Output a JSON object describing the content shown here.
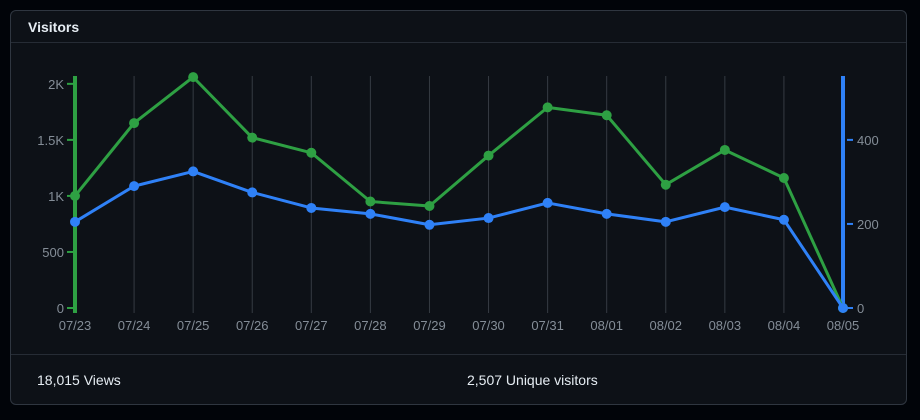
{
  "card": {
    "title": "Visitors"
  },
  "chart_data": {
    "type": "line",
    "x": [
      "07/23",
      "07/24",
      "07/25",
      "07/26",
      "07/27",
      "07/28",
      "07/29",
      "07/30",
      "07/31",
      "08/01",
      "08/02",
      "08/03",
      "08/04",
      "08/05"
    ],
    "series": [
      {
        "name": "Views",
        "axis": "left",
        "color": "#2ea043",
        "values": [
          1000,
          1650,
          2060,
          1520,
          1385,
          950,
          910,
          1360,
          1790,
          1720,
          1100,
          1410,
          1160,
          0
        ]
      },
      {
        "name": "Unique visitors",
        "axis": "right",
        "color": "#2f81f7",
        "values": [
          205,
          290,
          325,
          275,
          238,
          224,
          198,
          214,
          250,
          224,
          205,
          240,
          210,
          0
        ]
      }
    ],
    "left_axis": {
      "color": "#2ea043",
      "range": [
        0,
        2070
      ],
      "ticks": [
        {
          "value": 0,
          "label": "0"
        },
        {
          "value": 500,
          "label": "500"
        },
        {
          "value": 1000,
          "label": "1K"
        },
        {
          "value": 1500,
          "label": "1.5K"
        },
        {
          "value": 2000,
          "label": "2K"
        }
      ]
    },
    "right_axis": {
      "color": "#2f81f7",
      "range": [
        0,
        552
      ],
      "ticks": [
        {
          "value": 0,
          "label": "0"
        },
        {
          "value": 200,
          "label": "200"
        },
        {
          "value": 400,
          "label": "400"
        }
      ]
    },
    "grid": "vertical",
    "grid_color": "#353b43",
    "tick_label_color": "#848d97",
    "title": "Visitors"
  },
  "footer": {
    "views": "18,015 Views",
    "unique_visitors": "2,507 Unique visitors"
  }
}
